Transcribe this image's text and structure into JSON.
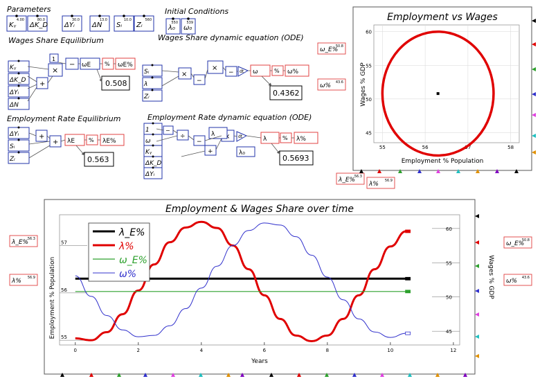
{
  "sections": {
    "parameters": "Parameters",
    "initial_conditions": "Initial Conditions",
    "wages_eq": "Wages Share Equilibrium",
    "wages_ode": "Wages Share dynamic equation (ODE)",
    "emp_eq": "Employment Rate Equilibrium",
    "emp_ode": "Employment Rate dynamic equation (ODE)"
  },
  "params": [
    {
      "label": "Kᵧ",
      "value": "4.00"
    },
    {
      "label": "ΔK_D",
      "value": "80.0"
    },
    {
      "label": "ΔYᵢ",
      "value": "30.0"
    },
    {
      "label": "ΔN",
      "value": "13.0"
    },
    {
      "label": "Sᵢ",
      "value": "10.0"
    },
    {
      "label": "Zᵢ",
      "value": "560"
    }
  ],
  "initial": [
    {
      "label": "λ₀",
      "value": "550"
    },
    {
      "label": "ω₀",
      "value": "539"
    }
  ],
  "results": {
    "wages_eq": "0.508",
    "wages_ode": "0.4362",
    "emp_eq": "0.563",
    "emp_ode": "0.5693"
  },
  "tags": {
    "omega_e": "ω_E",
    "omega_e_val": "50.8",
    "omega": "ω",
    "omega_val": "43.6",
    "lambda_e": "λ_E",
    "lambda_e_val": "56.3",
    "lambda": "λ",
    "lambda_val": "56.9",
    "pct": "%"
  },
  "phase_plot": {
    "title": "Employment vs Wages",
    "xlabel": "Employment % Population",
    "ylabel": "Wages % GDP"
  },
  "time_plot": {
    "title": "Employment & Wages Share over time",
    "xlabel": "Years",
    "ylabel_left": "Employment % Population",
    "ylabel_right": "Wages % GDP",
    "legend": [
      "λ_E%",
      "λ%",
      "ω_E%",
      "ω%"
    ]
  },
  "chart_data": [
    {
      "type": "line",
      "title": "Employment vs Wages",
      "xlabel": "Employment % Population",
      "ylabel": "Wages % GDP",
      "xlim": [
        54.8,
        58.2
      ],
      "ylim": [
        43.5,
        61
      ],
      "x_ticks": [
        55,
        56,
        57,
        58
      ],
      "y_ticks": [
        45,
        50,
        55,
        60
      ],
      "series": [
        {
          "name": "cycle",
          "center": [
            56.3,
            50.8
          ],
          "x_radius": 1.3,
          "y_radius": 9.2
        },
        {
          "name": "equilibrium",
          "x": [
            56.3
          ],
          "y": [
            50.8
          ]
        }
      ],
      "grid": true
    },
    {
      "type": "line",
      "title": "Employment & Wages Share over time",
      "xlabel": "Years",
      "ylabel": "Employment % Population",
      "y2label": "Wages % GDP",
      "xlim": [
        -0.5,
        12.2
      ],
      "ylim": [
        54.9,
        57.65
      ],
      "y2lim": [
        43.0,
        62.0
      ],
      "x_ticks": [
        0,
        2,
        4,
        6,
        8,
        10,
        12
      ],
      "y_ticks": [
        55,
        56,
        57
      ],
      "y2_ticks": [
        45,
        50,
        55,
        60
      ],
      "series": [
        {
          "name": "λ_E%",
          "axis": "left",
          "color": "#000000",
          "x": [
            0,
            10.5
          ],
          "y": [
            56.3,
            56.3
          ]
        },
        {
          "name": "λ%",
          "axis": "left",
          "color": "#e00000",
          "x": [
            0,
            0.5,
            1,
            1.5,
            2,
            2.5,
            3,
            3.5,
            4,
            4.5,
            5,
            5.5,
            6,
            6.5,
            7,
            7.5,
            8,
            8.5,
            9,
            9.5,
            10,
            10.5
          ],
          "y": [
            55.04,
            55.0,
            55.17,
            55.55,
            56.05,
            56.6,
            57.07,
            57.38,
            57.5,
            57.37,
            57.0,
            56.5,
            55.95,
            55.45,
            55.1,
            54.98,
            55.1,
            55.45,
            55.95,
            56.5,
            56.98,
            57.3
          ]
        },
        {
          "name": "ω_E%",
          "axis": "right",
          "color": "#2ca02c",
          "x": [
            0,
            10.5
          ],
          "y": [
            50.8,
            50.8
          ]
        },
        {
          "name": "ω%",
          "axis": "right",
          "color": "#3030cc",
          "x": [
            0,
            0.5,
            1,
            1.5,
            2,
            2.5,
            3,
            3.5,
            4,
            4.5,
            5,
            5.5,
            6,
            6.5,
            7,
            7.5,
            8,
            8.5,
            9,
            9.5,
            10,
            10.5
          ],
          "y": [
            53.1,
            50.1,
            47.3,
            45.2,
            44.2,
            44.4,
            45.8,
            48.3,
            51.3,
            54.5,
            57.5,
            59.7,
            60.8,
            60.5,
            58.8,
            56.1,
            52.9,
            49.6,
            46.8,
            44.9,
            44.1,
            44.7
          ]
        }
      ]
    }
  ]
}
